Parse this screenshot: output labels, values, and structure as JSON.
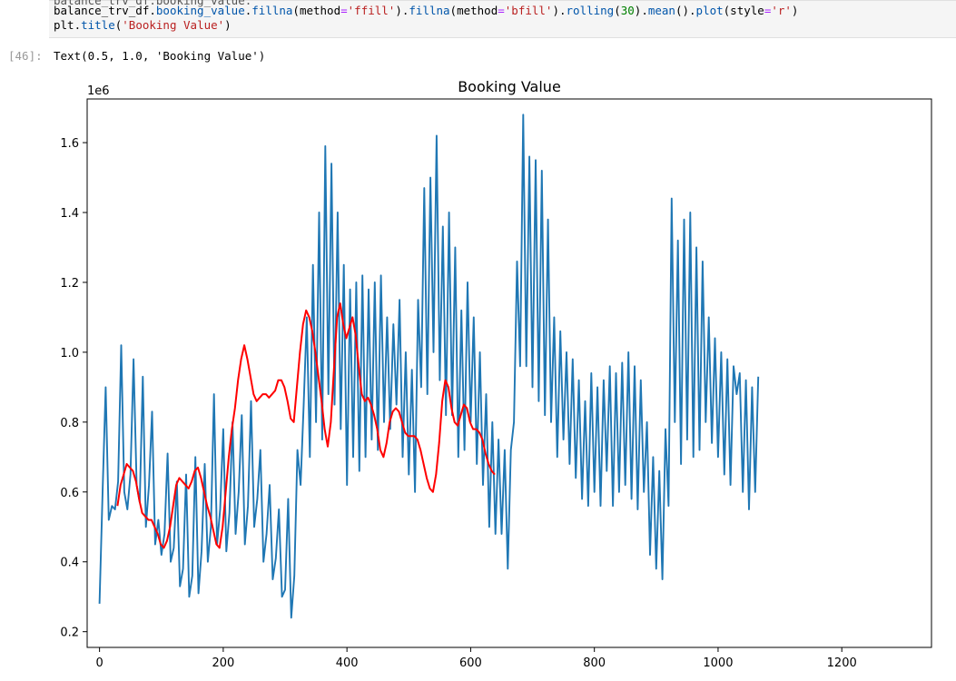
{
  "cell": {
    "code_line0": "balance_trv_df.booking_value.",
    "code_line1_parts": [
      {
        "t": "balance_trv_df.",
        "c": ""
      },
      {
        "t": "booking_value",
        "c": "t-attr"
      },
      {
        "t": ".",
        "c": ""
      },
      {
        "t": "fillna",
        "c": "t-attr"
      },
      {
        "t": "(method",
        "c": ""
      },
      {
        "t": "=",
        "c": "t-op"
      },
      {
        "t": "'ffill'",
        "c": "t-str"
      },
      {
        "t": ").",
        "c": ""
      },
      {
        "t": "fillna",
        "c": "t-attr"
      },
      {
        "t": "(method",
        "c": ""
      },
      {
        "t": "=",
        "c": "t-op"
      },
      {
        "t": "'bfill'",
        "c": "t-str"
      },
      {
        "t": ").",
        "c": ""
      },
      {
        "t": "rolling",
        "c": "t-attr"
      },
      {
        "t": "(",
        "c": ""
      },
      {
        "t": "30",
        "c": "t-num"
      },
      {
        "t": ").",
        "c": ""
      },
      {
        "t": "mean",
        "c": "t-attr"
      },
      {
        "t": "().",
        "c": ""
      },
      {
        "t": "plot",
        "c": "t-attr"
      },
      {
        "t": "(style",
        "c": ""
      },
      {
        "t": "=",
        "c": "t-op"
      },
      {
        "t": "'r'",
        "c": "t-str"
      },
      {
        "t": ")",
        "c": ""
      }
    ],
    "code_line2_parts": [
      {
        "t": "plt.",
        "c": ""
      },
      {
        "t": "title",
        "c": "t-attr"
      },
      {
        "t": "(",
        "c": ""
      },
      {
        "t": "'Booking Value'",
        "c": "t-str"
      },
      {
        "t": ")",
        "c": ""
      }
    ],
    "output_prompt": "[46]:",
    "output_text": "Text(0.5, 1.0, 'Booking Value')"
  },
  "chart_data": {
    "type": "line",
    "title": "Booking Value",
    "ylabel_offset": "1e6",
    "xlim": [
      -20,
      1345
    ],
    "ylim": [
      0.155,
      1.725
    ],
    "x_ticks": [
      0,
      200,
      400,
      600,
      800,
      1000,
      1200
    ],
    "y_ticks": [
      0.2,
      0.4,
      0.6,
      0.8,
      1.0,
      1.2,
      1.4,
      1.6
    ],
    "y_tick_labels": [
      "0.2",
      "0.4",
      "0.6",
      "0.8",
      "1.0",
      "1.2",
      "1.4",
      "1.6"
    ],
    "colors": {
      "raw": "#1f77b4",
      "rolling": "#ff0000"
    },
    "series": [
      {
        "style": "raw",
        "x_start": 0,
        "x_step": 5,
        "values": [
          0.28,
          0.6,
          0.9,
          0.52,
          0.56,
          0.55,
          0.63,
          1.02,
          0.6,
          0.55,
          0.65,
          0.98,
          0.62,
          0.57,
          0.93,
          0.5,
          0.62,
          0.83,
          0.45,
          0.52,
          0.42,
          0.48,
          0.71,
          0.4,
          0.44,
          0.63,
          0.33,
          0.38,
          0.65,
          0.3,
          0.36,
          0.7,
          0.31,
          0.43,
          0.68,
          0.4,
          0.5,
          0.88,
          0.45,
          0.55,
          0.78,
          0.43,
          0.54,
          0.8,
          0.48,
          0.6,
          0.82,
          0.45,
          0.56,
          0.86,
          0.5,
          0.58,
          0.72,
          0.4,
          0.48,
          0.62,
          0.35,
          0.41,
          0.55,
          0.3,
          0.32,
          0.58,
          0.24,
          0.36,
          0.72,
          0.62,
          0.85,
          1.1,
          0.7,
          1.25,
          0.8,
          1.4,
          0.75,
          1.59,
          0.88,
          1.54,
          0.85,
          1.4,
          0.78,
          1.25,
          0.62,
          1.18,
          0.7,
          1.2,
          0.66,
          1.22,
          0.7,
          1.18,
          0.75,
          1.2,
          0.72,
          1.22,
          0.8,
          1.1,
          0.78,
          1.08,
          0.85,
          1.15,
          0.7,
          1.0,
          0.65,
          0.95,
          0.6,
          1.15,
          0.9,
          1.47,
          0.88,
          1.5,
          1.0,
          1.62,
          0.92,
          1.36,
          0.82,
          1.4,
          0.82,
          1.3,
          0.7,
          1.12,
          0.72,
          1.2,
          0.8,
          1.1,
          0.68,
          1.0,
          0.62,
          0.88,
          0.5,
          0.8,
          0.48,
          0.75,
          0.48,
          0.72,
          0.38,
          0.72,
          0.8,
          1.26,
          0.96,
          1.68,
          0.96,
          1.56,
          0.9,
          1.55,
          0.86,
          1.52,
          0.82,
          1.38,
          0.8,
          1.1,
          0.7,
          1.06,
          0.75,
          1.0,
          0.68,
          0.98,
          0.64,
          0.92,
          0.58,
          0.86,
          0.56,
          0.94,
          0.6,
          0.9,
          0.56,
          0.92,
          0.66,
          0.96,
          0.56,
          0.94,
          0.6,
          0.97,
          0.62,
          1.0,
          0.58,
          0.96,
          0.55,
          0.92,
          0.6,
          0.8,
          0.42,
          0.7,
          0.38,
          0.66,
          0.35,
          0.78,
          0.56,
          1.44,
          0.8,
          1.32,
          0.68,
          1.38,
          0.75,
          1.4,
          0.7,
          1.3,
          0.72,
          1.26,
          0.8,
          1.1,
          0.74,
          1.04,
          0.7,
          1.0,
          0.65,
          0.98,
          0.62,
          0.96,
          0.88,
          0.94,
          0.6,
          0.92,
          0.55,
          0.9,
          0.6,
          0.93
        ]
      },
      {
        "style": "rolling",
        "x_start": 29,
        "x_step": 5,
        "values": [
          0.56,
          0.62,
          0.65,
          0.68,
          0.67,
          0.66,
          0.63,
          0.58,
          0.54,
          0.53,
          0.52,
          0.52,
          0.5,
          0.48,
          0.45,
          0.44,
          0.46,
          0.5,
          0.56,
          0.62,
          0.64,
          0.63,
          0.62,
          0.61,
          0.63,
          0.66,
          0.67,
          0.64,
          0.6,
          0.56,
          0.53,
          0.49,
          0.45,
          0.44,
          0.5,
          0.6,
          0.7,
          0.78,
          0.84,
          0.92,
          0.98,
          1.02,
          0.98,
          0.93,
          0.88,
          0.86,
          0.87,
          0.88,
          0.88,
          0.87,
          0.88,
          0.89,
          0.92,
          0.92,
          0.9,
          0.86,
          0.81,
          0.8,
          0.9,
          1.0,
          1.08,
          1.12,
          1.1,
          1.06,
          1.0,
          0.93,
          0.86,
          0.78,
          0.73,
          0.8,
          0.95,
          1.1,
          1.14,
          1.08,
          1.04,
          1.07,
          1.1,
          1.05,
          0.96,
          0.88,
          0.86,
          0.87,
          0.85,
          0.82,
          0.78,
          0.72,
          0.7,
          0.74,
          0.8,
          0.83,
          0.84,
          0.83,
          0.8,
          0.77,
          0.76,
          0.76,
          0.76,
          0.75,
          0.72,
          0.68,
          0.64,
          0.61,
          0.6,
          0.65,
          0.74,
          0.86,
          0.92,
          0.9,
          0.84,
          0.8,
          0.79,
          0.82,
          0.85,
          0.84,
          0.8,
          0.78,
          0.78,
          0.77,
          0.75,
          0.71,
          0.68,
          0.66,
          0.65
        ]
      }
    ]
  }
}
